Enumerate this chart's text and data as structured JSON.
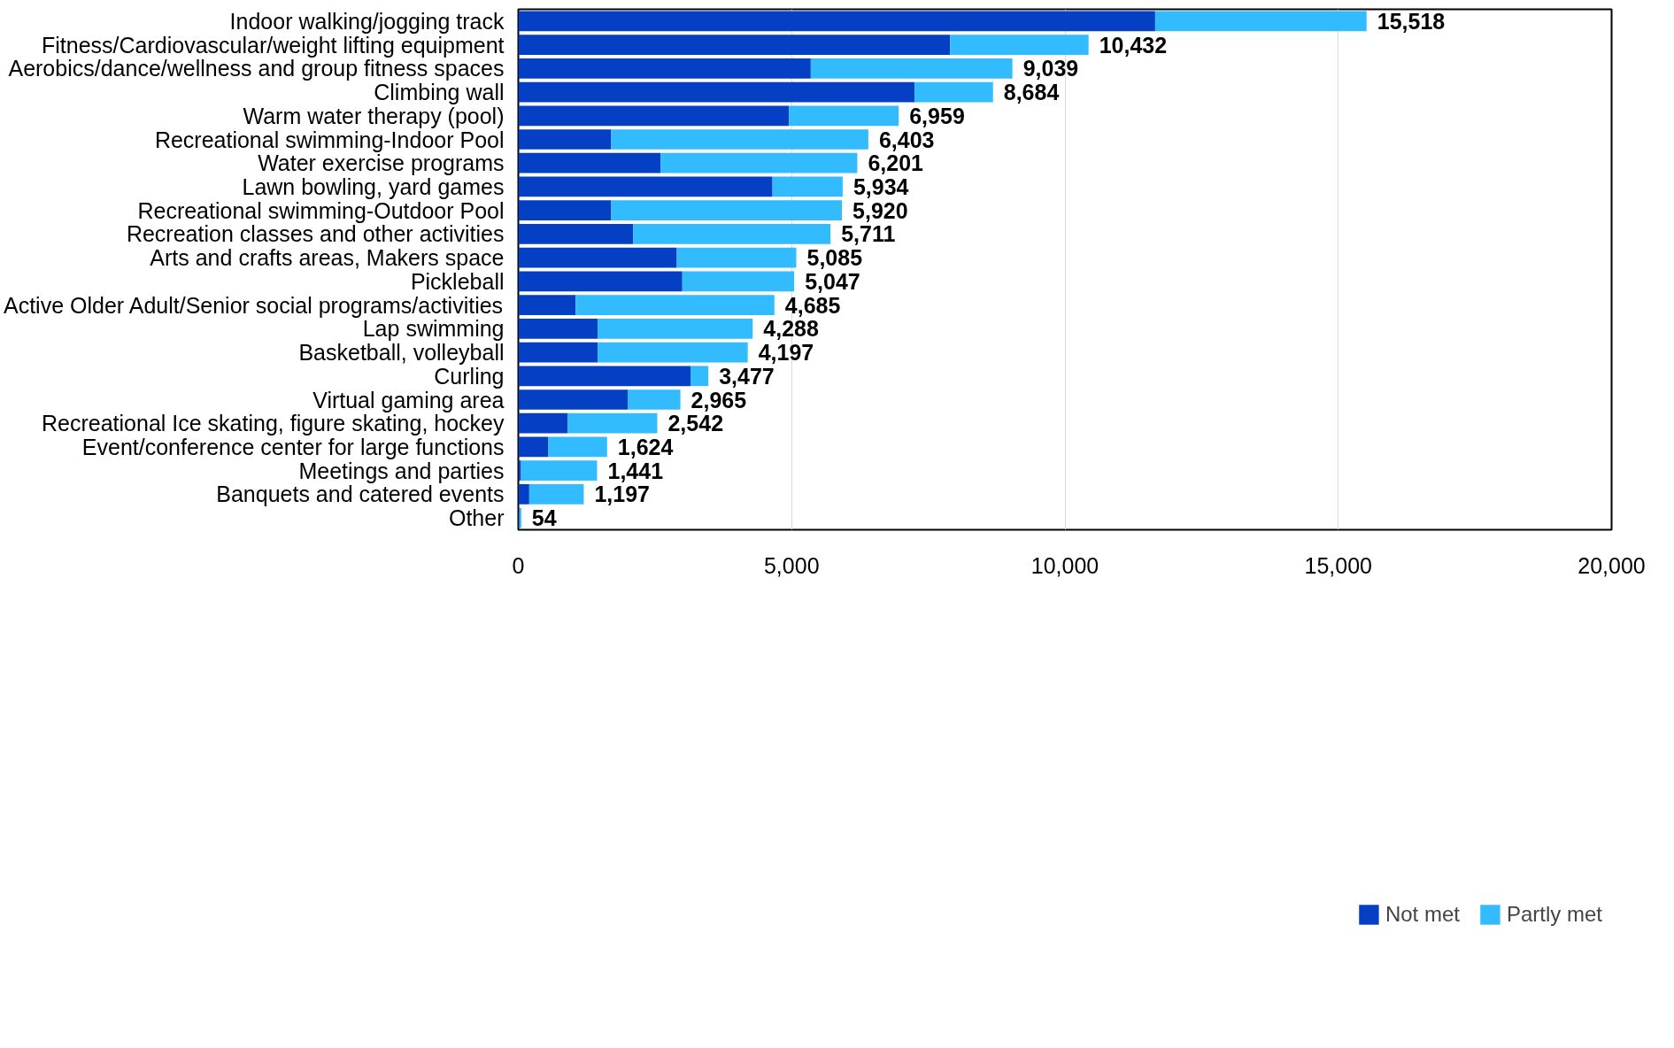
{
  "chart_data": {
    "type": "bar",
    "orientation": "horizontal",
    "stacked": true,
    "categories": [
      "Indoor walking/jogging track",
      "Fitness/Cardiovascular/weight lifting equipment",
      "Aerobics/dance/wellness and group fitness spaces",
      "Climbing wall",
      "Warm water therapy (pool)",
      "Recreational swimming-Indoor Pool",
      "Water exercise programs",
      "Lawn bowling, yard games",
      "Recreational swimming-Outdoor Pool",
      "Recreation classes and other activities",
      "Arts and crafts areas, Makers space",
      "Pickleball",
      "Active Older Adult/Senior social programs/activities",
      "Lap swimming",
      "Basketball, volleyball",
      "Curling",
      "Virtual gaming area",
      "Recreational Ice skating, figure skating, hockey",
      "Event/conference center for large functions",
      "Meetings and parties",
      "Banquets and catered events",
      "Other"
    ],
    "series": [
      {
        "name": "Not met",
        "color": "#0540c4",
        "values": [
          11650,
          7900,
          5350,
          7250,
          4950,
          1700,
          2600,
          4650,
          1700,
          2100,
          2900,
          3000,
          1050,
          1450,
          1450,
          3150,
          2000,
          900,
          550,
          50,
          200,
          20
        ]
      },
      {
        "name": "Partly met",
        "color": "#33bbff",
        "values": [
          3868,
          2532,
          3689,
          1434,
          2009,
          4703,
          3601,
          1284,
          4220,
          3611,
          2185,
          2047,
          3635,
          2838,
          2747,
          327,
          965,
          1642,
          1074,
          1391,
          997,
          34
        ]
      }
    ],
    "totals": [
      "15,518",
      "10,432",
      "9,039",
      "8,684",
      "6,959",
      "6,403",
      "6,201",
      "5,934",
      "5,920",
      "5,711",
      "5,085",
      "5,047",
      "4,685",
      "4,288",
      "4,197",
      "3,477",
      "2,965",
      "2,542",
      "1,624",
      "1,441",
      "1,197",
      "54"
    ],
    "xlim": [
      0,
      20000
    ],
    "xticks": [
      {
        "value": 0,
        "label": "0"
      },
      {
        "value": 5000,
        "label": "5,000"
      },
      {
        "value": 10000,
        "label": "10,000"
      },
      {
        "value": 15000,
        "label": "15,000"
      },
      {
        "value": 20000,
        "label": "20,000"
      }
    ],
    "grid": "x",
    "legend": "bottom right"
  }
}
